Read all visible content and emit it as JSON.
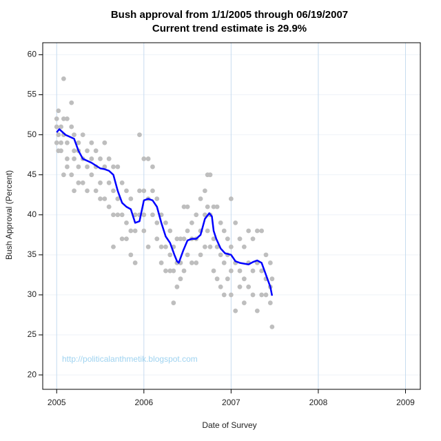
{
  "chart_data": {
    "type": "scatter",
    "title": "Bush approval from 1/1/2005 through 06/19/2007",
    "subtitle": "Current trend estimate is 29.9%",
    "x_label": "Date of Survey",
    "y_label": "Bush Approval (Percent)",
    "annotation": "http://politicalanthmetik.blogspot.com",
    "xlim": [
      2004.84,
      2009.17
    ],
    "ylim": [
      18.2,
      61.5
    ],
    "xticks": [
      2005,
      2006,
      2007,
      2008,
      2009
    ],
    "yticks": [
      20,
      25,
      30,
      35,
      40,
      45,
      50,
      55,
      60
    ],
    "grid": true,
    "series": [
      {
        "type": "scatter",
        "color": "#bebebe",
        "x": [
          2005.0,
          2005.0,
          2005.0,
          2005.02,
          2005.02,
          2005.02,
          2005.05,
          2005.05,
          2005.05,
          2005.08,
          2005.08,
          2005.08,
          2005.08,
          2005.12,
          2005.12,
          2005.12,
          2005.12,
          2005.17,
          2005.17,
          2005.17,
          2005.2,
          2005.2,
          2005.2,
          2005.2,
          2005.25,
          2005.25,
          2005.25,
          2005.25,
          2005.3,
          2005.3,
          2005.3,
          2005.35,
          2005.35,
          2005.35,
          2005.4,
          2005.4,
          2005.4,
          2005.45,
          2005.45,
          2005.45,
          2005.5,
          2005.5,
          2005.5,
          2005.55,
          2005.55,
          2005.55,
          2005.6,
          2005.6,
          2005.6,
          2005.65,
          2005.65,
          2005.65,
          2005.65,
          2005.7,
          2005.7,
          2005.7,
          2005.75,
          2005.75,
          2005.75,
          2005.8,
          2005.8,
          2005.8,
          2005.85,
          2005.85,
          2005.85,
          2005.9,
          2005.9,
          2005.9,
          2005.95,
          2005.95,
          2005.95,
          2006.0,
          2006.0,
          2006.0,
          2006.0,
          2006.05,
          2006.05,
          2006.05,
          2006.1,
          2006.1,
          2006.1,
          2006.15,
          2006.15,
          2006.15,
          2006.2,
          2006.2,
          2006.2,
          2006.25,
          2006.25,
          2006.25,
          2006.3,
          2006.3,
          2006.3,
          2006.34,
          2006.34,
          2006.34,
          2006.38,
          2006.38,
          2006.38,
          2006.42,
          2006.42,
          2006.42,
          2006.46,
          2006.46,
          2006.46,
          2006.5,
          2006.5,
          2006.5,
          2006.55,
          2006.55,
          2006.55,
          2006.6,
          2006.6,
          2006.6,
          2006.65,
          2006.65,
          2006.65,
          2006.7,
          2006.7,
          2006.7,
          2006.73,
          2006.73,
          2006.73,
          2006.76,
          2006.76,
          2006.76,
          2006.8,
          2006.8,
          2006.8,
          2006.84,
          2006.84,
          2006.84,
          2006.88,
          2006.88,
          2006.88,
          2006.92,
          2006.92,
          2006.92,
          2006.96,
          2006.96,
          2006.96,
          2007.0,
          2007.0,
          2007.0,
          2007.0,
          2007.05,
          2007.05,
          2007.05,
          2007.1,
          2007.1,
          2007.1,
          2007.15,
          2007.15,
          2007.15,
          2007.2,
          2007.2,
          2007.2,
          2007.25,
          2007.25,
          2007.25,
          2007.3,
          2007.3,
          2007.3,
          2007.35,
          2007.35,
          2007.35,
          2007.4,
          2007.4,
          2007.4,
          2007.45,
          2007.45,
          2007.45,
          2007.47,
          2007.47
        ],
        "values": [
          52,
          49,
          51,
          53,
          50,
          48,
          51,
          48,
          49,
          57,
          52,
          50,
          45,
          52,
          49,
          46,
          47,
          54,
          51,
          45,
          50,
          47,
          43,
          48,
          48,
          46,
          44,
          49,
          50,
          47,
          44,
          48,
          46,
          43,
          49,
          47,
          45,
          48,
          46,
          43,
          47,
          44,
          42,
          49,
          46,
          42,
          47,
          44,
          41,
          46,
          43,
          36,
          40,
          46,
          42,
          40,
          44,
          40,
          37,
          43,
          39,
          37,
          42,
          38,
          35,
          40,
          38,
          34,
          50,
          43,
          40,
          47,
          43,
          40,
          38,
          47,
          42,
          36,
          46,
          43,
          40,
          42,
          39,
          37,
          40,
          36,
          34,
          39,
          36,
          33,
          38,
          35,
          33,
          36,
          33,
          29,
          37,
          34,
          31,
          37,
          34,
          32,
          41,
          37,
          33,
          41,
          38,
          35,
          39,
          37,
          34,
          40,
          37,
          34,
          42,
          38,
          35,
          43,
          40,
          36,
          45,
          41,
          38,
          45,
          40,
          36,
          41,
          37,
          33,
          41,
          36,
          32,
          39,
          35,
          31,
          38,
          34,
          30,
          37,
          35,
          32,
          42,
          36,
          33,
          30,
          39,
          34,
          28,
          37,
          33,
          31,
          36,
          32,
          29,
          38,
          34,
          31,
          37,
          33,
          30,
          38,
          34,
          28,
          38,
          33,
          30,
          35,
          32,
          30,
          34,
          31,
          29,
          32,
          26
        ]
      },
      {
        "type": "line",
        "color": "#0000ff",
        "x": [
          2005.0,
          2005.03,
          2005.1,
          2005.2,
          2005.25,
          2005.3,
          2005.4,
          2005.5,
          2005.55,
          2005.6,
          2005.65,
          2005.7,
          2005.75,
          2005.8,
          2005.85,
          2005.9,
          2005.95,
          2006.0,
          2006.05,
          2006.1,
          2006.15,
          2006.2,
          2006.25,
          2006.3,
          2006.35,
          2006.38,
          2006.4,
          2006.45,
          2006.5,
          2006.55,
          2006.6,
          2006.65,
          2006.7,
          2006.75,
          2006.78,
          2006.8,
          2006.83,
          2006.88,
          2006.93,
          2007.0,
          2007.05,
          2007.1,
          2007.2,
          2007.25,
          2007.3,
          2007.35,
          2007.4,
          2007.45,
          2007.47
        ],
        "values": [
          50.3,
          50.7,
          50,
          49.5,
          48,
          47,
          46.5,
          45.8,
          45.7,
          45.5,
          45,
          43,
          41.5,
          41,
          40.7,
          39,
          39.2,
          41.8,
          42,
          41.8,
          41,
          39,
          37.3,
          36.5,
          35,
          34.2,
          34,
          35.5,
          36.8,
          37,
          37,
          37.5,
          39.5,
          40.2,
          39.8,
          38,
          37,
          35.8,
          35.2,
          35,
          34.2,
          34,
          33.8,
          34.1,
          34.3,
          34,
          32.5,
          31,
          29.9
        ]
      }
    ]
  }
}
